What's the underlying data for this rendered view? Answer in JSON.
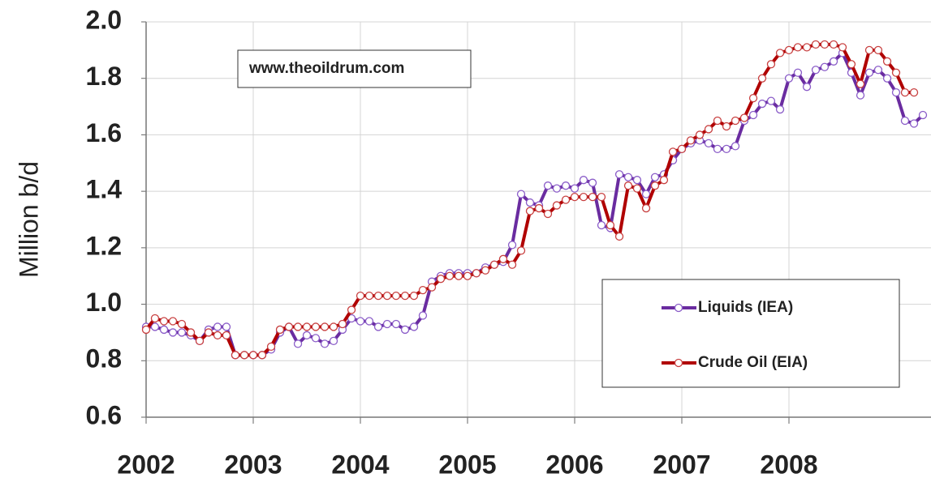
{
  "chart_data": {
    "type": "line",
    "ylabel": "Million b/d",
    "annotation": "www.theoildrum.com",
    "x": [
      2002,
      2002.083,
      2002.167,
      2002.25,
      2002.333,
      2002.417,
      2002.5,
      2002.583,
      2002.667,
      2002.75,
      2002.833,
      2002.917,
      2003,
      2003.083,
      2003.167,
      2003.25,
      2003.333,
      2003.417,
      2003.5,
      2003.583,
      2003.667,
      2003.75,
      2003.833,
      2003.917,
      2004,
      2004.083,
      2004.167,
      2004.25,
      2004.333,
      2004.417,
      2004.5,
      2004.583,
      2004.667,
      2004.75,
      2004.833,
      2004.917,
      2005,
      2005.083,
      2005.167,
      2005.25,
      2005.333,
      2005.417,
      2005.5,
      2005.583,
      2005.667,
      2005.75,
      2005.833,
      2005.917,
      2006,
      2006.083,
      2006.167,
      2006.25,
      2006.333,
      2006.417,
      2006.5,
      2006.583,
      2006.667,
      2006.75,
      2006.833,
      2006.917,
      2007,
      2007.083,
      2007.167,
      2007.25,
      2007.333,
      2007.417,
      2007.5,
      2007.583,
      2007.667,
      2007.75,
      2007.833,
      2007.917,
      2008,
      2008.083,
      2008.167,
      2008.25,
      2008.333,
      2008.417,
      2008.5,
      2008.583,
      2008.667,
      2008.75,
      2008.833,
      2008.917,
      2009,
      2009.083,
      2009.167,
      2009.25
    ],
    "series": [
      {
        "name": "Liquids (IEA)",
        "color": "#6a2ca0",
        "marker_color": "#8a5cc8",
        "values": [
          0.92,
          0.92,
          0.91,
          0.9,
          0.9,
          0.89,
          0.87,
          0.91,
          0.92,
          0.92,
          0.82,
          0.82,
          0.82,
          0.82,
          0.84,
          0.9,
          0.92,
          0.86,
          0.89,
          0.88,
          0.86,
          0.87,
          0.91,
          0.95,
          0.94,
          0.94,
          0.92,
          0.93,
          0.93,
          0.91,
          0.92,
          0.96,
          1.08,
          1.1,
          1.11,
          1.11,
          1.11,
          1.11,
          1.13,
          1.14,
          1.15,
          1.21,
          1.39,
          1.36,
          1.35,
          1.42,
          1.41,
          1.42,
          1.41,
          1.44,
          1.43,
          1.28,
          1.27,
          1.46,
          1.45,
          1.44,
          1.39,
          1.45,
          1.46,
          1.51,
          1.55,
          1.57,
          1.58,
          1.57,
          1.55,
          1.55,
          1.56,
          1.65,
          1.67,
          1.71,
          1.72,
          1.69,
          1.8,
          1.82,
          1.77,
          1.83,
          1.84,
          1.86,
          1.89,
          1.82,
          1.74,
          1.82,
          1.83,
          1.8,
          1.75,
          1.65,
          1.64,
          1.67
        ]
      },
      {
        "name": "Crude Oil (EIA)",
        "color": "#b00000",
        "marker_color": "#c84040",
        "values": [
          0.91,
          0.95,
          0.94,
          0.94,
          0.93,
          0.9,
          0.87,
          0.9,
          0.89,
          0.89,
          0.82,
          0.82,
          0.82,
          0.82,
          0.85,
          0.91,
          0.92,
          0.92,
          0.92,
          0.92,
          0.92,
          0.92,
          0.93,
          0.98,
          1.03,
          1.03,
          1.03,
          1.03,
          1.03,
          1.03,
          1.03,
          1.05,
          1.06,
          1.09,
          1.1,
          1.1,
          1.1,
          1.11,
          1.12,
          1.14,
          1.16,
          1.14,
          1.19,
          1.33,
          1.34,
          1.32,
          1.35,
          1.37,
          1.38,
          1.38,
          1.38,
          1.38,
          1.28,
          1.24,
          1.42,
          1.41,
          1.34,
          1.42,
          1.44,
          1.54,
          1.55,
          1.58,
          1.6,
          1.62,
          1.65,
          1.63,
          1.65,
          1.66,
          1.73,
          1.8,
          1.85,
          1.89,
          1.9,
          1.91,
          1.91,
          1.92,
          1.92,
          1.92,
          1.91,
          1.85,
          1.78,
          1.9,
          1.9,
          1.86,
          1.82,
          1.75,
          1.75,
          null
        ]
      }
    ],
    "xlim": [
      2002,
      2009.33
    ],
    "xticks": [
      2002,
      2003,
      2004,
      2005,
      2006,
      2007,
      2008
    ],
    "ylim": [
      0.6,
      2.0
    ],
    "yticks": [
      0.6,
      0.8,
      {
        "value": 1.0,
        "label": "1.0"
      },
      1.2,
      1.4,
      1.6,
      1.8,
      {
        "value": 2.0,
        "label": "2.0"
      }
    ],
    "grid": true
  }
}
